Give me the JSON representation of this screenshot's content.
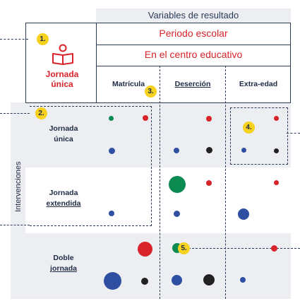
{
  "header": {
    "variables_label": "Variables de resultado",
    "period_label": "Periodo escolar",
    "center_label": "En el centro educativo"
  },
  "columns": [
    "Matrícula",
    "Deserción",
    "Extra-edad"
  ],
  "intervention": {
    "title_line1": "Jornada",
    "title_line2": "única",
    "icon": "reading-person-icon"
  },
  "side_label": "Intervenciones",
  "rows": [
    {
      "line1": "Jornada",
      "line2": "única"
    },
    {
      "line1": "Jornada",
      "line2": "extendida"
    },
    {
      "line1": "Doble",
      "line2": "jornada"
    }
  ],
  "badges": [
    "1.",
    "2.",
    "3.",
    "4.",
    "5."
  ],
  "colors": {
    "red": "#d8232a",
    "blue": "#2f4fa3",
    "green": "#0b8a52",
    "black": "#222222",
    "navy": "#1f2a44",
    "yellow": "#f6d21f",
    "band": "#eceef2"
  }
}
